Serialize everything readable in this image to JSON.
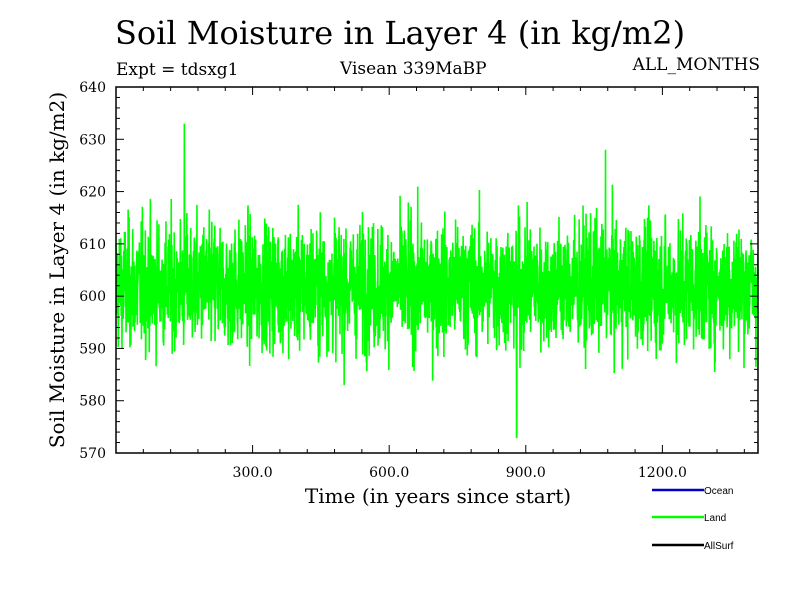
{
  "chart_data": {
    "type": "line",
    "title": "Soil Moisture in Layer 4 (in kg/m2)",
    "subtitle": "Visean 339MaBP",
    "expt_label": "Expt = tdsxg1",
    "period_label": "ALL_MONTHS",
    "xlabel": "Time (in years since start)",
    "ylabel": "Soil Moisture in Layer 4 (in kg/m2)",
    "xlim": [
      0,
      1410
    ],
    "ylim": [
      570,
      640
    ],
    "xticks": [
      300,
      600,
      900,
      1200
    ],
    "xtick_labels": [
      "300.0",
      "600.0",
      "900.0",
      "1200.0"
    ],
    "yticks": [
      570,
      580,
      590,
      600,
      610,
      620,
      630,
      640
    ],
    "ytick_labels": [
      "570",
      "580",
      "590",
      "600",
      "610",
      "620",
      "630",
      "640"
    ],
    "series": [
      {
        "name": "Ocean",
        "color": "#0000cc",
        "values": []
      },
      {
        "name": "Land",
        "color": "#00ff00",
        "mean": 602,
        "min": 573,
        "max": 633,
        "typical_range": [
          581,
          622
        ],
        "notable_points": [
          {
            "x": 150,
            "y": 633
          },
          {
            "x": 880,
            "y": 573
          },
          {
            "x": 1075,
            "y": 628
          }
        ]
      },
      {
        "name": "AllSurf",
        "color": "#000000",
        "values": []
      }
    ],
    "legend_position": "bottom-right"
  }
}
